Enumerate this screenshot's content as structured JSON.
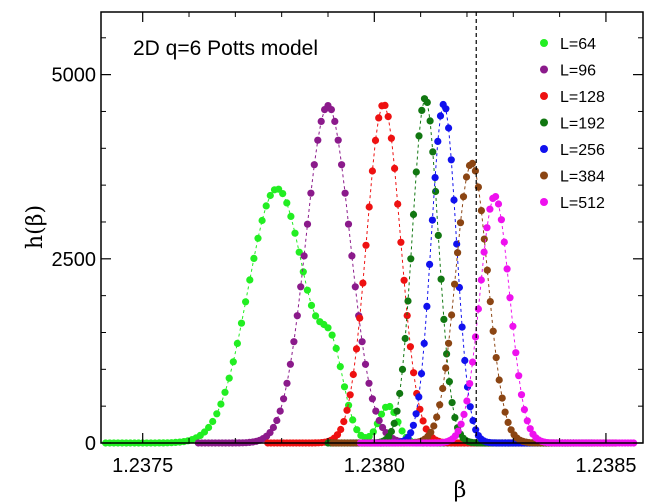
{
  "chart_data": {
    "type": "scatter",
    "title": "",
    "annotation": "2D q=6 Potts model",
    "xlabel": "β",
    "ylabel": "h(β)",
    "xlim": [
      1.23741,
      1.23858
    ],
    "ylim": [
      0,
      5850
    ],
    "x_ticks": [
      1.2375,
      1.238,
      1.2385
    ],
    "x_tick_labels": [
      "1.2375",
      "1.2380",
      "1.2385"
    ],
    "y_ticks": [
      0,
      2500,
      5000
    ],
    "y_tick_labels": [
      "0",
      "2500",
      "5000"
    ],
    "vertical_line": {
      "x": 1.23822,
      "style": "dashed"
    },
    "legend_position": "top-right",
    "grid": false,
    "series": [
      {
        "name": "L=64",
        "color": "#22ee22",
        "center": 1.23779,
        "sigma": 6.25e-05,
        "peak": 3450,
        "bumps": [
          {
            "x": 1.23791,
            "height": 900,
            "width": 2.5e-05
          },
          {
            "x": 1.23803,
            "height": 500,
            "width": 2e-05
          }
        ],
        "x_range": [
          1.23742,
          1.2383
        ],
        "points": 100
      },
      {
        "name": "L=96",
        "color": "#8b1a8b",
        "center": 1.2379,
        "sigma": 4.75e-05,
        "peak": 4580,
        "bumps": [],
        "x_range": [
          1.23762,
          1.23832
        ],
        "points": 96
      },
      {
        "name": "L=128",
        "color": "#ee1111",
        "center": 1.23802,
        "sigma": 3.65e-05,
        "peak": 4600,
        "bumps": [],
        "x_range": [
          1.23777,
          1.23842
        ],
        "points": 96
      },
      {
        "name": "L=192",
        "color": "#117711",
        "center": 1.23811,
        "sigma": 2.8e-05,
        "peak": 4680,
        "bumps": [],
        "x_range": [
          1.2379,
          1.23843
        ],
        "points": 90
      },
      {
        "name": "L=256",
        "color": "#1111ee",
        "center": 1.23815,
        "sigma": 2.7e-05,
        "peak": 4600,
        "bumps": [],
        "x_range": [
          1.23795,
          1.23847
        ],
        "points": 90
      },
      {
        "name": "L=384",
        "color": "#8b4513",
        "center": 1.23821,
        "sigma": 3.45e-05,
        "peak": 3800,
        "bumps": [],
        "x_range": [
          1.23791,
          1.23852
        ],
        "points": 96
      },
      {
        "name": "L=512",
        "color": "#ee11ee",
        "center": 1.23826,
        "sigma": 3.2e-05,
        "peak": 3350,
        "bumps": [],
        "x_range": [
          1.23797,
          1.23856
        ],
        "points": 96
      }
    ]
  }
}
